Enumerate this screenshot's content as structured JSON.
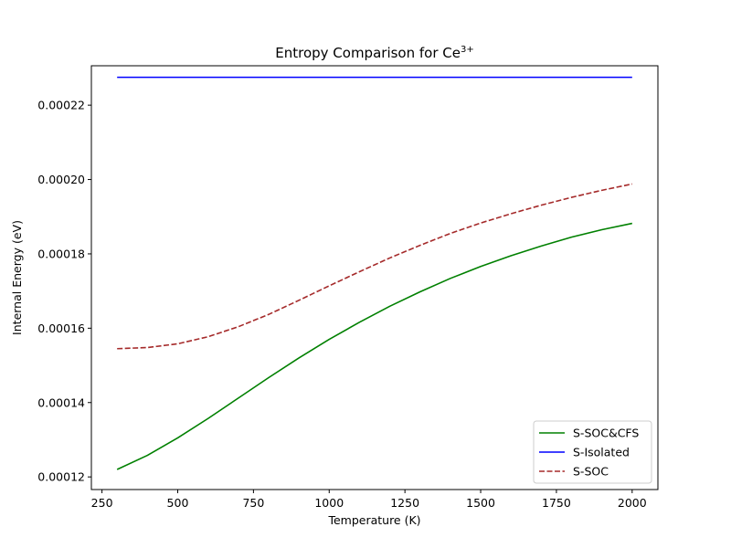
{
  "chart_data": {
    "type": "line",
    "title_main": "Entropy Comparison for Ce",
    "title_sup": "3+",
    "xlabel": "Temperature (K)",
    "ylabel": "Internal Energy (eV)",
    "xlim": [
      215,
      2085
    ],
    "ylim": [
      0.0001166,
      0.0002306
    ],
    "xticks": [
      250,
      500,
      750,
      1000,
      1250,
      1500,
      1750,
      2000
    ],
    "xtick_labels": [
      "250",
      "500",
      "750",
      "1000",
      "1250",
      "1500",
      "1750",
      "2000"
    ],
    "yticks": [
      0.00012,
      0.00014,
      0.00016,
      0.00018,
      0.0002,
      0.00022
    ],
    "ytick_labels": [
      "0.00012",
      "0.00014",
      "0.00016",
      "0.00018",
      "0.00020",
      "0.00022"
    ],
    "grid": false,
    "legend_position": "lower-right",
    "series": [
      {
        "name": "S-SOC&CFS",
        "color": "#008000",
        "style": "solid",
        "x": [
          300,
          400,
          500,
          600,
          700,
          800,
          900,
          1000,
          1100,
          1200,
          1300,
          1400,
          1500,
          1600,
          1700,
          1800,
          1900,
          2000
        ],
        "y": [
          0.000122,
          0.0001258,
          0.0001305,
          0.0001357,
          0.0001412,
          0.0001467,
          0.000152,
          0.000157,
          0.0001616,
          0.0001659,
          0.0001698,
          0.0001734,
          0.0001766,
          0.0001795,
          0.0001821,
          0.0001845,
          0.0001865,
          0.0001882
        ]
      },
      {
        "name": "S-Isolated",
        "color": "#0000ff",
        "style": "solid",
        "x": [
          300,
          2000
        ],
        "y": [
          0.0002275,
          0.0002275
        ]
      },
      {
        "name": "S-SOC",
        "color": "#a52a2a",
        "style": "dashed",
        "x": [
          300,
          400,
          500,
          600,
          700,
          800,
          900,
          1000,
          1100,
          1200,
          1300,
          1400,
          1500,
          1600,
          1700,
          1800,
          1900,
          2000
        ],
        "y": [
          0.0001545,
          0.0001548,
          0.0001558,
          0.0001577,
          0.0001604,
          0.0001637,
          0.0001675,
          0.0001714,
          0.0001752,
          0.0001789,
          0.0001823,
          0.0001855,
          0.0001883,
          0.0001908,
          0.0001931,
          0.0001952,
          0.0001971,
          0.0001988
        ]
      }
    ]
  }
}
